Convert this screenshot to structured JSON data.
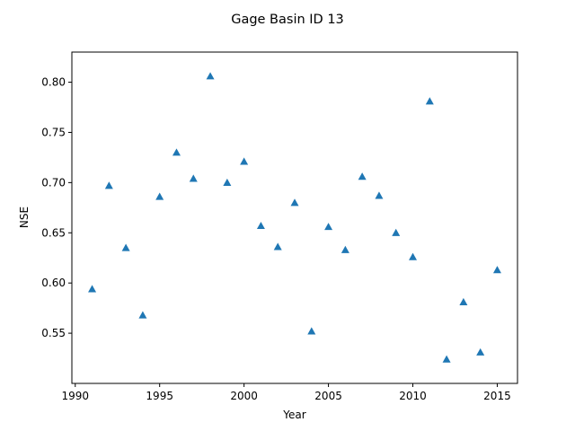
{
  "chart_data": {
    "type": "scatter",
    "title": "Gage Basin ID 13",
    "xlabel": "Year",
    "ylabel": "NSE",
    "xlim": [
      1989.8,
      2016.2
    ],
    "ylim": [
      0.5,
      0.83
    ],
    "xticks": [
      1990,
      1995,
      2000,
      2005,
      2010,
      2015
    ],
    "xtick_labels": [
      "1990",
      "1995",
      "2000",
      "2005",
      "2010",
      "2015"
    ],
    "yticks": [
      0.55,
      0.6,
      0.65,
      0.7,
      0.75,
      0.8
    ],
    "ytick_labels": [
      "0.55",
      "0.60",
      "0.65",
      "0.70",
      "0.75",
      "0.80"
    ],
    "grid": false,
    "marker": "triangle-up",
    "color": "#1f77b4",
    "points": [
      {
        "x": 1991,
        "y": 0.594
      },
      {
        "x": 1992,
        "y": 0.697
      },
      {
        "x": 1993,
        "y": 0.635
      },
      {
        "x": 1994,
        "y": 0.568
      },
      {
        "x": 1995,
        "y": 0.686
      },
      {
        "x": 1996,
        "y": 0.73
      },
      {
        "x": 1997,
        "y": 0.704
      },
      {
        "x": 1998,
        "y": 0.806
      },
      {
        "x": 1999,
        "y": 0.7
      },
      {
        "x": 2000,
        "y": 0.721
      },
      {
        "x": 2001,
        "y": 0.657
      },
      {
        "x": 2002,
        "y": 0.636
      },
      {
        "x": 2003,
        "y": 0.68
      },
      {
        "x": 2004,
        "y": 0.552
      },
      {
        "x": 2005,
        "y": 0.656
      },
      {
        "x": 2006,
        "y": 0.633
      },
      {
        "x": 2007,
        "y": 0.706
      },
      {
        "x": 2008,
        "y": 0.687
      },
      {
        "x": 2009,
        "y": 0.65
      },
      {
        "x": 2010,
        "y": 0.626
      },
      {
        "x": 2011,
        "y": 0.781
      },
      {
        "x": 2012,
        "y": 0.524
      },
      {
        "x": 2013,
        "y": 0.581
      },
      {
        "x": 2014,
        "y": 0.531
      },
      {
        "x": 2015,
        "y": 0.613
      }
    ]
  }
}
